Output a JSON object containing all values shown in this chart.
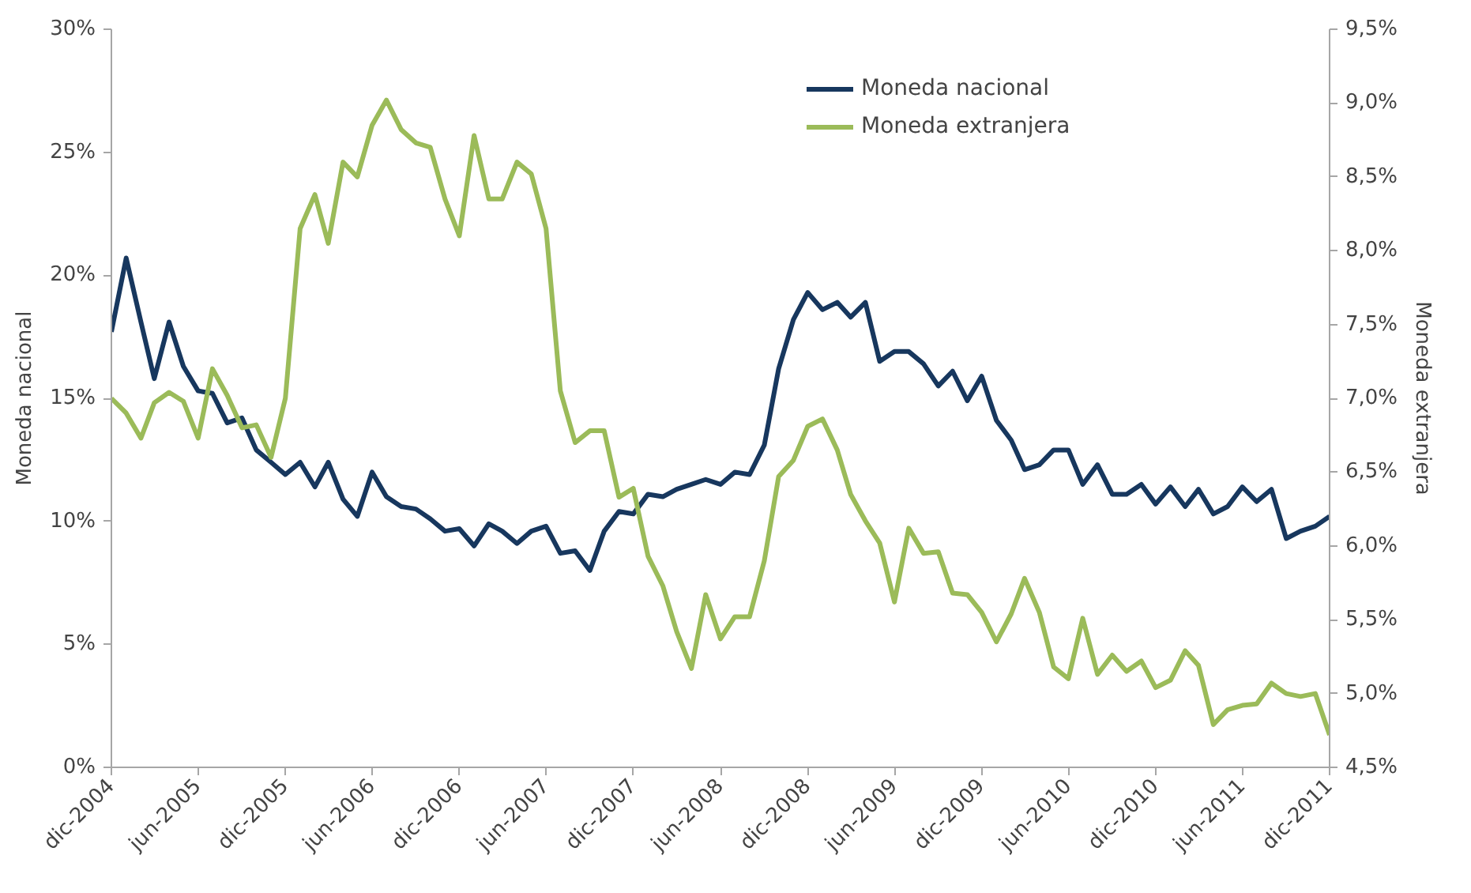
{
  "chart_data": {
    "type": "line",
    "ylabel": "Moneda nacional",
    "y2label": "Moneda extranjera",
    "x": [
      "2004-12",
      "2005-01",
      "2005-02",
      "2005-03",
      "2005-04",
      "2005-05",
      "2005-06",
      "2005-07",
      "2005-08",
      "2005-09",
      "2005-10",
      "2005-11",
      "2005-12",
      "2006-01",
      "2006-02",
      "2006-03",
      "2006-04",
      "2006-05",
      "2006-06",
      "2006-07",
      "2006-08",
      "2006-09",
      "2006-10",
      "2006-11",
      "2006-12",
      "2007-01",
      "2007-02",
      "2007-03",
      "2007-04",
      "2007-05",
      "2007-06",
      "2007-07",
      "2007-08",
      "2007-09",
      "2007-10",
      "2007-11",
      "2007-12",
      "2008-01",
      "2008-02",
      "2008-03",
      "2008-04",
      "2008-05",
      "2008-06",
      "2008-07",
      "2008-08",
      "2008-09",
      "2008-10",
      "2008-11",
      "2008-12",
      "2009-01",
      "2009-02",
      "2009-03",
      "2009-04",
      "2009-05",
      "2009-06",
      "2009-07",
      "2009-08",
      "2009-09",
      "2009-10",
      "2009-11",
      "2009-12",
      "2010-01",
      "2010-02",
      "2010-03",
      "2010-04",
      "2010-05",
      "2010-06",
      "2010-07",
      "2010-08",
      "2010-09",
      "2010-10",
      "2010-11",
      "2010-12",
      "2011-01",
      "2011-02",
      "2011-03",
      "2011-04",
      "2011-05",
      "2011-06",
      "2011-07",
      "2011-08",
      "2011-09",
      "2011-10",
      "2011-11",
      "2011-12"
    ],
    "series": [
      {
        "name": "Moneda nacional",
        "color": "#17375e",
        "values": [
          17.7,
          20.7,
          18.1,
          15.8,
          18.1,
          16.3,
          15.3,
          15.2,
          14.0,
          14.2,
          12.9,
          12.4,
          11.9,
          12.4,
          11.4,
          12.4,
          10.9,
          10.2,
          12.0,
          11.0,
          10.6,
          10.5,
          10.1,
          9.6,
          9.7,
          9.0,
          9.9,
          9.6,
          9.1,
          9.6,
          9.8,
          8.7,
          8.8,
          8.0,
          9.6,
          10.4,
          10.3,
          11.1,
          11.0,
          11.3,
          11.5,
          11.7,
          11.5,
          12.0,
          11.9,
          13.1,
          16.2,
          18.2,
          19.3,
          18.6,
          18.9,
          18.3,
          18.9,
          16.5,
          16.9,
          16.9,
          16.4,
          15.5,
          16.1,
          14.9,
          15.9,
          14.1,
          13.3,
          12.1,
          12.3,
          12.9,
          12.9,
          11.5,
          12.3,
          11.1,
          11.1,
          11.5,
          10.7,
          11.4,
          10.6,
          11.3,
          10.3,
          10.6,
          11.4,
          10.8,
          11.3,
          9.3,
          9.6,
          9.8,
          10.2
        ]
      },
      {
        "name": "Moneda extranjera",
        "color": "#9bbb59",
        "axis": "y2",
        "values": [
          7.0,
          6.9,
          6.73,
          6.97,
          7.04,
          6.98,
          6.73,
          7.2,
          7.02,
          6.8,
          6.82,
          6.6,
          7.0,
          8.15,
          8.38,
          8.05,
          8.6,
          8.5,
          8.85,
          9.02,
          8.82,
          8.73,
          8.7,
          8.35,
          8.1,
          8.78,
          8.35,
          8.35,
          8.6,
          8.52,
          8.15,
          7.05,
          6.7,
          6.78,
          6.78,
          6.33,
          6.39,
          5.93,
          5.73,
          5.42,
          5.17,
          5.67,
          5.37,
          5.52,
          5.52,
          5.9,
          6.47,
          6.58,
          6.81,
          6.86,
          6.65,
          6.35,
          6.17,
          6.02,
          5.62,
          6.12,
          5.95,
          5.96,
          5.68,
          5.67,
          5.55,
          5.35,
          5.54,
          5.78,
          5.55,
          5.18,
          5.1,
          5.51,
          5.13,
          5.26,
          5.15,
          5.22,
          5.04,
          5.09,
          5.29,
          5.19,
          4.79,
          4.89,
          4.92,
          4.93,
          5.07,
          5.0,
          4.98,
          5.0,
          4.72
        ]
      }
    ],
    "xlim": [
      "2004-12",
      "2011-12"
    ],
    "xticks": [
      {
        "value": "2004-12",
        "label": "dic-2004"
      },
      {
        "value": "2005-06",
        "label": "jun-2005"
      },
      {
        "value": "2005-12",
        "label": "dic-2005"
      },
      {
        "value": "2006-06",
        "label": "jun-2006"
      },
      {
        "value": "2006-12",
        "label": "dic-2006"
      },
      {
        "value": "2007-06",
        "label": "jun-2007"
      },
      {
        "value": "2007-12",
        "label": "dic-2007"
      },
      {
        "value": "2008-06",
        "label": "jun-2008"
      },
      {
        "value": "2008-12",
        "label": "dic-2008"
      },
      {
        "value": "2009-06",
        "label": "jun-2009"
      },
      {
        "value": "2009-12",
        "label": "dic-2009"
      },
      {
        "value": "2010-06",
        "label": "jun-2010"
      },
      {
        "value": "2010-12",
        "label": "dic-2010"
      },
      {
        "value": "2011-06",
        "label": "jun-2011"
      },
      {
        "value": "2011-12",
        "label": "dic-2011"
      }
    ],
    "ylim": [
      0,
      30
    ],
    "yticks": [
      {
        "value": 0,
        "label": "0%"
      },
      {
        "value": 5,
        "label": "5%"
      },
      {
        "value": 10,
        "label": "10%"
      },
      {
        "value": 15,
        "label": "15%"
      },
      {
        "value": 20,
        "label": "20%"
      },
      {
        "value": 25,
        "label": "25%"
      },
      {
        "value": 30,
        "label": "30%"
      }
    ],
    "y2lim": [
      4.5,
      9.5
    ],
    "y2ticks": [
      {
        "value": 4.5,
        "label": "4,5%"
      },
      {
        "value": 5.0,
        "label": "5,0%"
      },
      {
        "value": 5.5,
        "label": "5,5%"
      },
      {
        "value": 6.0,
        "label": "6,0%"
      },
      {
        "value": 6.5,
        "label": "6,5%"
      },
      {
        "value": 7.0,
        "label": "7,0%"
      },
      {
        "value": 7.5,
        "label": "7,5%"
      },
      {
        "value": 8.0,
        "label": "8,0%"
      },
      {
        "value": 8.5,
        "label": "8,5%"
      },
      {
        "value": 9.0,
        "label": "9,0%"
      },
      {
        "value": 9.5,
        "label": "9,5%"
      }
    ],
    "legend": "top right",
    "grid": false,
    "marker": "none",
    "line_style": "solid"
  }
}
